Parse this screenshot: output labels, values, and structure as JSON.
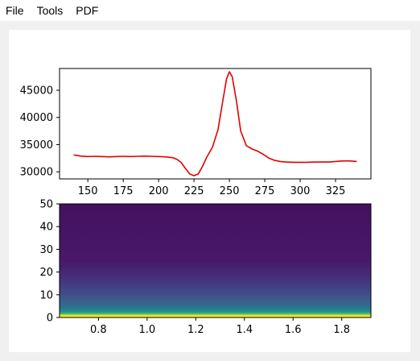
{
  "menubar": {
    "items": [
      {
        "label": "File",
        "name": "file"
      },
      {
        "label": "Tools",
        "name": "tools"
      },
      {
        "label": "PDF",
        "name": "pdf"
      }
    ]
  },
  "colors": {
    "line": "#e00000",
    "viridis_dark": "#45115f",
    "viridis_mid": "#3d5a8c",
    "viridis_teal": "#21908d",
    "viridis_green": "#5cc863",
    "viridis_yellow": "#fde725"
  },
  "chart_data": [
    {
      "type": "line",
      "title": "",
      "xlabel": "",
      "ylabel": "",
      "xlim": [
        130,
        350
      ],
      "ylim": [
        28700,
        49000
      ],
      "xticks": [
        150,
        175,
        200,
        225,
        250,
        275,
        300,
        325
      ],
      "xtick_labels": [
        "150",
        "175",
        "200",
        "225",
        "250",
        "275",
        "300",
        "325"
      ],
      "yticks": [
        30000,
        35000,
        40000,
        45000
      ],
      "ytick_labels": [
        "30000",
        "35000",
        "40000",
        "45000"
      ],
      "grid": false,
      "series": [
        {
          "x": [
            140,
            145,
            150,
            155,
            160,
            165,
            170,
            175,
            180,
            185,
            190,
            195,
            200,
            205,
            210,
            213,
            216,
            219,
            222,
            225,
            228,
            231,
            234,
            238,
            242,
            245,
            248,
            250,
            252,
            255,
            258,
            262,
            266,
            270,
            274,
            278,
            282,
            286,
            290,
            295,
            300,
            305,
            310,
            315,
            320,
            325,
            330,
            335,
            340
          ],
          "y": [
            33100,
            32900,
            32800,
            32850,
            32800,
            32750,
            32800,
            32850,
            32800,
            32850,
            32900,
            32850,
            32800,
            32750,
            32600,
            32300,
            31700,
            30600,
            29600,
            29300,
            29600,
            31000,
            32700,
            34500,
            37800,
            42500,
            47100,
            48400,
            47500,
            43000,
            37500,
            34800,
            34200,
            33800,
            33200,
            32500,
            32100,
            31900,
            31800,
            31750,
            31750,
            31750,
            31800,
            31800,
            31800,
            31900,
            32000,
            32000,
            31900
          ]
        }
      ]
    },
    {
      "type": "heatmap",
      "title": "",
      "xlabel": "",
      "ylabel": "",
      "xlim": [
        0.64,
        1.92
      ],
      "ylim": [
        0,
        50
      ],
      "xticks": [
        0.8,
        1.0,
        1.2,
        1.4,
        1.6,
        1.8
      ],
      "xtick_labels": [
        "0.8",
        "1.0",
        "1.2",
        "1.4",
        "1.6",
        "1.8"
      ],
      "yticks": [
        0,
        10,
        20,
        30,
        40,
        50
      ],
      "ytick_labels": [
        "0",
        "10",
        "20",
        "30",
        "40",
        "50"
      ],
      "colormap": "viridis",
      "grid": false
    }
  ]
}
